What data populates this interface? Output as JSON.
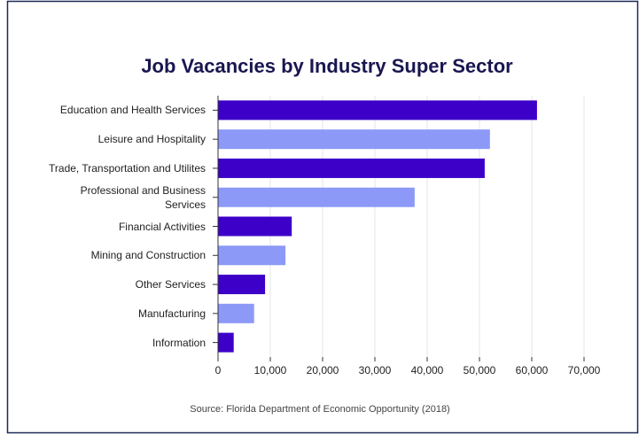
{
  "chart_data": {
    "type": "barh",
    "title": "Job Vacancies by Industry Super Sector",
    "source": "Source: Florida Department of Economic Opportunity (2018)",
    "categories": [
      "Education and Health Services",
      "Leisure and Hospitality",
      "Trade, Transportation and Utilites",
      "Professional and Business Services",
      "Financial Activities",
      "Mining and Construction",
      "Other Services",
      "Manufacturing",
      "Information"
    ],
    "values": [
      61000,
      52000,
      51000,
      37600,
      14100,
      12900,
      9000,
      6900,
      3000
    ],
    "colors": [
      "#3d00c9",
      "#8c99f7",
      "#3d00c9",
      "#8c99f7",
      "#3d00c9",
      "#8c99f7",
      "#3d00c9",
      "#8c99f7",
      "#3d00c9"
    ],
    "xlim": [
      0,
      70000
    ],
    "xticks": [
      0,
      {
        "value": 10000,
        "label": "10,000"
      },
      {
        "value": 20000,
        "label": "20,000"
      },
      {
        "value": 30000,
        "label": "30,000"
      },
      {
        "value": 40000,
        "label": "40,000"
      },
      {
        "value": 50000,
        "label": "50,000"
      },
      {
        "value": 60000,
        "label": "60,000"
      },
      {
        "value": 70000,
        "label": "70,000"
      }
    ],
    "grid": true
  }
}
